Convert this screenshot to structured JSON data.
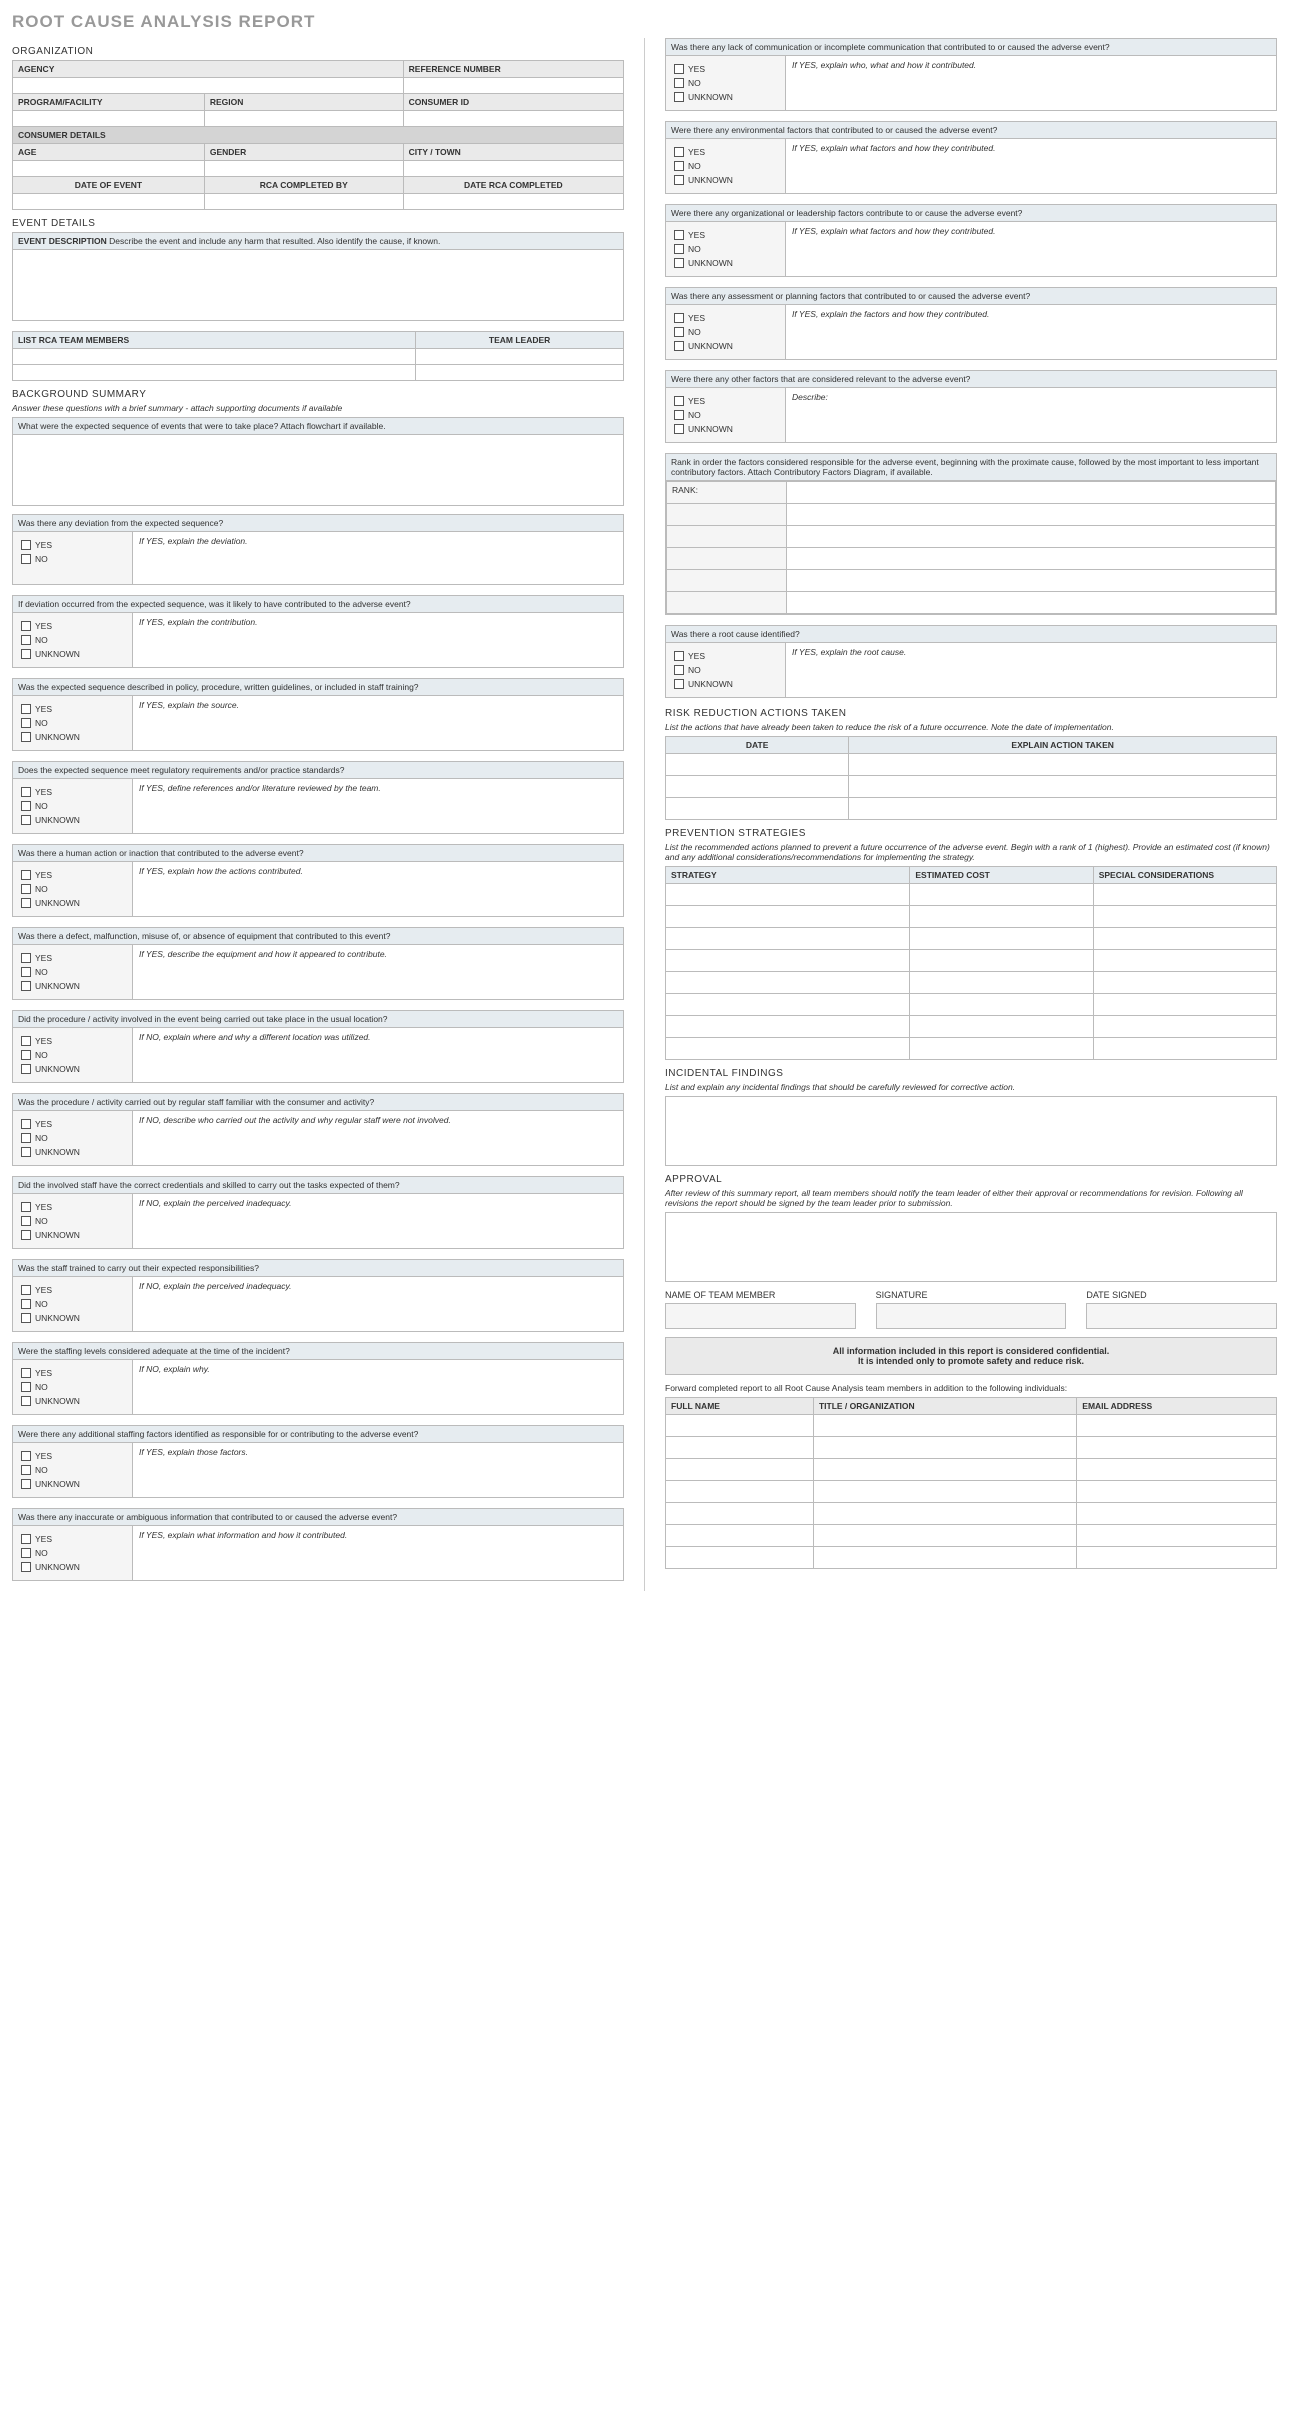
{
  "title": "ROOT CAUSE ANALYSIS REPORT",
  "sections": {
    "organization": "ORGANIZATION",
    "event_details": "EVENT DETAILS",
    "background": "BACKGROUND SUMMARY",
    "risk": "RISK REDUCTION ACTIONS TAKEN",
    "prevention": "PREVENTION STRATEGIES",
    "incidental": "INCIDENTAL FINDINGS",
    "approval": "APPROVAL"
  },
  "background_instr": "Answer these questions with a brief summary - attach supporting documents if available",
  "risk_instr": "List the actions that have already been taken to reduce the risk of a future occurrence. Note the date of implementation.",
  "prevention_instr": "List the recommended actions planned to prevent a future occurrence of the adverse event. Begin with a rank of 1 (highest). Provide an estimated cost (if known) and any additional considerations/recommendations for implementing the strategy.",
  "incidental_instr": "List and explain any incidental findings that should be carefully reviewed for corrective action.",
  "approval_instr": "After review of this summary report, all team members should notify the team leader of either their approval or recommendations for revision.  Following all revisions the report should be signed by the team leader prior to submission.",
  "forward_instr": "Forward completed report to all Root Cause Analysis team members in addition to the following individuals:",
  "org_fields": {
    "agency": "AGENCY",
    "ref": "REFERENCE NUMBER",
    "program": "PROGRAM/FACILITY",
    "region": "REGION",
    "consumer_id": "CONSUMER ID",
    "consumer_details": "CONSUMER DETAILS",
    "age": "AGE",
    "gender": "GENDER",
    "city": "CITY / TOWN",
    "date_event": "DATE OF EVENT",
    "rca_by": "RCA COMPLETED BY",
    "date_rca": "DATE RCA COMPLETED"
  },
  "event_desc_label": "EVENT DESCRIPTION",
  "event_desc_hint": "Describe the event and include any harm that resulted. Also identify the cause, if known.",
  "team_members_label": "LIST RCA TEAM MEMBERS",
  "team_leader_label": "TEAM LEADER",
  "expected_seq_q": "What were the expected sequence of events that were to take place? Attach flowchart if available.",
  "rank_instr": "Rank in order the factors considered responsible for the adverse event, beginning with the proximate cause, followed by the most important to less important contributory factors. Attach Contributory Factors Diagram, if available.",
  "rank_label": "RANK:",
  "opts": {
    "yes": "YES",
    "no": "NO",
    "unknown": "UNKNOWN"
  },
  "questions": [
    {
      "q": "Was there any deviation from the expected sequence?",
      "hint": "If YES, explain the deviation.",
      "opts": [
        "yes",
        "no"
      ]
    },
    {
      "q": "If deviation occurred from the expected sequence, was it likely to have contributed to the adverse event?",
      "hint": "If YES, explain the contribution.",
      "opts": [
        "yes",
        "no",
        "unknown"
      ]
    },
    {
      "q": "Was the expected sequence described in policy, procedure, written guidelines, or included in staff training?",
      "hint": "If YES, explain the source.",
      "opts": [
        "yes",
        "no",
        "unknown"
      ]
    },
    {
      "q": "Does the expected sequence meet regulatory requirements and/or practice standards?",
      "hint": "If YES, define references and/or literature reviewed by the team.",
      "opts": [
        "yes",
        "no",
        "unknown"
      ]
    },
    {
      "q": "Was there a human action or inaction that contributed to the adverse event?",
      "hint": "If YES, explain how the actions contributed.",
      "opts": [
        "yes",
        "no",
        "unknown"
      ]
    },
    {
      "q": "Was there a defect, malfunction, misuse of, or absence of equipment that contributed to this event?",
      "hint": "If YES, describe the equipment and how it appeared to contribute.",
      "opts": [
        "yes",
        "no",
        "unknown"
      ]
    },
    {
      "q": "Did the procedure / activity involved in the event being carried out take place in the usual location?",
      "hint": "If NO, explain where and why a different location was utilized.",
      "opts": [
        "yes",
        "no",
        "unknown"
      ]
    },
    {
      "q": "Was the procedure / activity carried out by regular staff familiar with the consumer and activity?",
      "hint": "If NO, describe who carried out the activity and why regular staff were not involved.",
      "opts": [
        "yes",
        "no",
        "unknown"
      ]
    },
    {
      "q": "Did the involved staff have the correct credentials and skilled to carry out the tasks expected of them?",
      "hint": "If NO, explain the perceived inadequacy.",
      "opts": [
        "yes",
        "no",
        "unknown"
      ]
    },
    {
      "q": "Was the staff trained to carry out their expected responsibilities?",
      "hint": "If NO, explain the perceived inadequacy.",
      "opts": [
        "yes",
        "no",
        "unknown"
      ]
    },
    {
      "q": "Were the staffing levels considered adequate at the time of the incident?",
      "hint": "If NO, explain why.",
      "opts": [
        "yes",
        "no",
        "unknown"
      ]
    },
    {
      "q": "Were there any additional staffing factors identified as responsible for or contributing to the adverse event?",
      "hint": "If YES, explain those factors.",
      "opts": [
        "yes",
        "no",
        "unknown"
      ]
    },
    {
      "q": "Was there any inaccurate or ambiguous information that contributed to or caused the adverse event?",
      "hint": "If YES, explain what information and how it contributed.",
      "opts": [
        "yes",
        "no",
        "unknown"
      ]
    },
    {
      "q": "Was there any lack of communication or incomplete communication that contributed to or caused the adverse event?",
      "hint": "If YES, explain who, what and how it contributed.",
      "opts": [
        "yes",
        "no",
        "unknown"
      ]
    },
    {
      "q": "Were there any environmental factors that contributed to or caused the adverse event?",
      "hint": "If YES, explain what factors and how they contributed.",
      "opts": [
        "yes",
        "no",
        "unknown"
      ]
    },
    {
      "q": "Were there any organizational or leadership factors contribute to or cause the adverse event?",
      "hint": "If YES, explain what factors and how they contributed.",
      "opts": [
        "yes",
        "no",
        "unknown"
      ]
    },
    {
      "q": "Was there any assessment or planning factors that contributed to or caused the adverse event?",
      "hint": "If YES, explain the factors and how they contributed.",
      "opts": [
        "yes",
        "no",
        "unknown"
      ]
    },
    {
      "q": "Were there any other factors that are considered relevant to the adverse event?",
      "hint": "Describe:",
      "opts": [
        "yes",
        "no",
        "unknown"
      ]
    }
  ],
  "root_cause_q": {
    "q": "Was there a root cause identified?",
    "hint": "If YES, explain the root cause.",
    "opts": [
      "yes",
      "no",
      "unknown"
    ]
  },
  "risk_table": {
    "date": "DATE",
    "action": "EXPLAIN ACTION TAKEN",
    "rows": 3
  },
  "prev_table": {
    "strategy": "STRATEGY",
    "cost": "ESTIMATED COST",
    "cons": "SPECIAL CONSIDERATIONS",
    "rows": 8
  },
  "sig": {
    "name": "NAME OF TEAM MEMBER",
    "signature": "SIGNATURE",
    "date": "DATE SIGNED"
  },
  "conf1": "All information included in this report is considered confidential.",
  "conf2": "It is intended only to promote safety and reduce risk.",
  "dist_table": {
    "name": "FULL NAME",
    "title": "TITLE / ORGANIZATION",
    "email": "EMAIL ADDRESS",
    "rows": 7
  },
  "rank_rows": 6
}
